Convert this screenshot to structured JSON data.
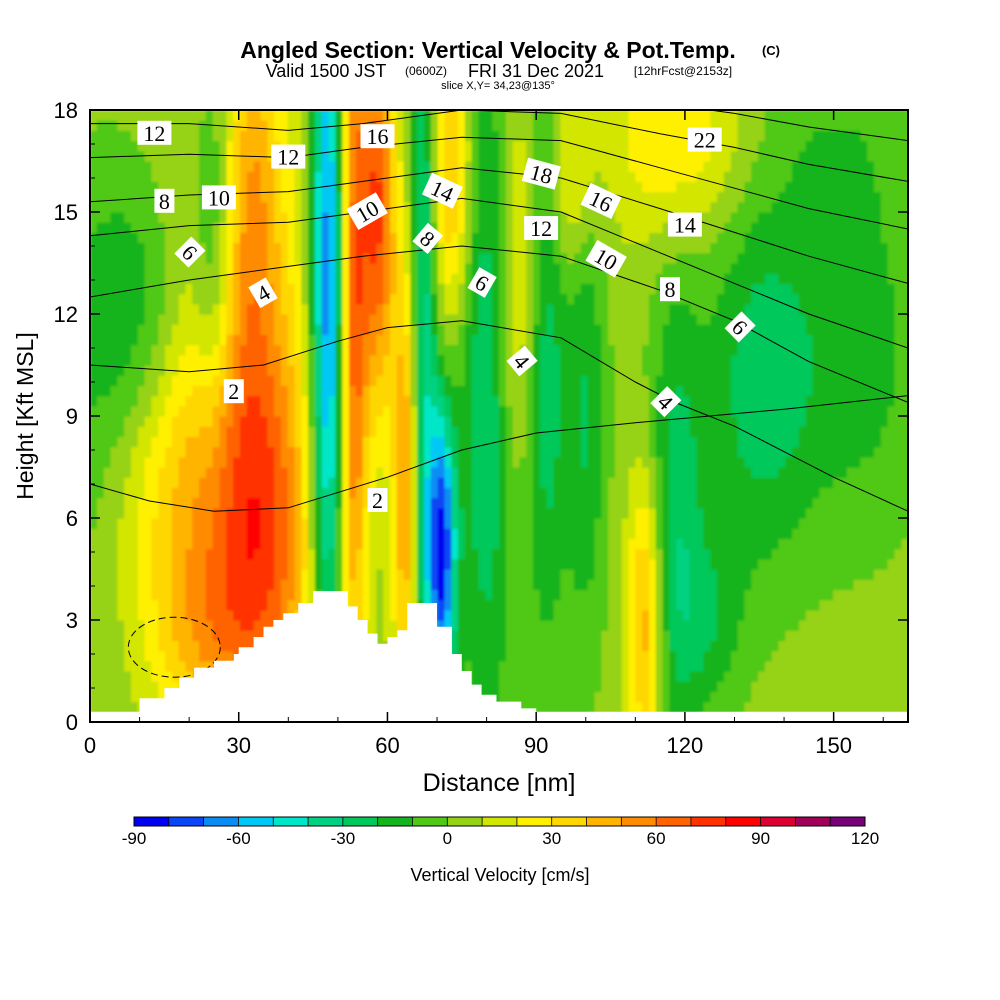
{
  "header": {
    "title": "Angled Section: Vertical Velocity & Pot.Temp.",
    "title_unit": "(C)",
    "valid_prefix": "Valid 1500 JST",
    "valid_utc": "(0600Z)",
    "valid_date": "FRI 31 Dec 2021",
    "forecast": "[12hrFcst@2153z]",
    "slice": "slice X,Y= 34,23@135°"
  },
  "chart_data": {
    "type": "heatmap",
    "xlabel": "Distance [nm]",
    "ylabel": "Height [Kft MSL]",
    "xlim": [
      0,
      165
    ],
    "ylim": [
      0,
      18
    ],
    "x_ticks": [
      0,
      30,
      60,
      90,
      120,
      150
    ],
    "y_ticks": [
      0,
      3,
      6,
      9,
      12,
      15,
      18
    ],
    "colorbar": {
      "label": "Vertical Velocity [cm/s]",
      "range": [
        -90,
        120
      ],
      "step": 10,
      "tick_labels": [
        "-90",
        "-60",
        "-30",
        "0",
        "30",
        "60",
        "90",
        "120"
      ],
      "colors": [
        "#0000f0",
        "#0a46f5",
        "#0a8cf5",
        "#00c8f5",
        "#00e6c8",
        "#00d282",
        "#00c85a",
        "#14b41e",
        "#50c814",
        "#96d214",
        "#d2e600",
        "#fff000",
        "#ffd700",
        "#ffb400",
        "#ff8c00",
        "#ff6400",
        "#ff3200",
        "#ff0000",
        "#dc0032",
        "#a0005a",
        "#780078"
      ]
    },
    "velocity_features_cm_s": [
      {
        "x": 0,
        "z": 9,
        "w": -15,
        "sx": 10,
        "sz": 5
      },
      {
        "x": 10,
        "z": 12,
        "w": -20,
        "sx": 8,
        "sz": 3
      },
      {
        "x": 15,
        "z": 7,
        "w": 22,
        "sx": 10,
        "sz": 3
      },
      {
        "x": 30,
        "z": 9,
        "w": 35,
        "sx": 11,
        "sz": 6
      },
      {
        "x": 35,
        "z": 5,
        "w": 42,
        "sx": 7,
        "sz": 4
      },
      {
        "x": 22,
        "z": 2.5,
        "w": 22,
        "sx": 8,
        "sz": 2
      },
      {
        "x": 25,
        "z": 14,
        "w": -30,
        "sx": 3,
        "sz": 4
      },
      {
        "x": 33,
        "z": 16,
        "w": 30,
        "sx": 4,
        "sz": 4
      },
      {
        "x": 48,
        "z": 12,
        "w": -80,
        "sx": 2.5,
        "sz": 8
      },
      {
        "x": 53,
        "z": 12,
        "w": 60,
        "sx": 2,
        "sz": 8
      },
      {
        "x": 58,
        "z": 15,
        "w": 65,
        "sx": 2.5,
        "sz": 4
      },
      {
        "x": 64,
        "z": 7,
        "w": 55,
        "sx": 2,
        "sz": 5
      },
      {
        "x": 67,
        "z": 11,
        "w": -50,
        "sx": 2,
        "sz": 9
      },
      {
        "x": 71,
        "z": 5,
        "w": -85,
        "sx": 2,
        "sz": 3
      },
      {
        "x": 73,
        "z": 16,
        "w": 40,
        "sx": 3,
        "sz": 3
      },
      {
        "x": 80,
        "z": 10,
        "w": -35,
        "sx": 4,
        "sz": 8
      },
      {
        "x": 86,
        "z": 13,
        "w": 25,
        "sx": 3,
        "sz": 4
      },
      {
        "x": 92,
        "z": 10,
        "w": -30,
        "sx": 3,
        "sz": 6
      },
      {
        "x": 100,
        "z": 9,
        "w": -25,
        "sx": 3,
        "sz": 5
      },
      {
        "x": 97,
        "z": 16,
        "w": 22,
        "sx": 3,
        "sz": 2
      },
      {
        "x": 112,
        "z": 3,
        "w": 45,
        "sx": 2.5,
        "sz": 3
      },
      {
        "x": 118,
        "z": 6,
        "w": -30,
        "sx": 4,
        "sz": 5
      },
      {
        "x": 125,
        "z": 3,
        "w": -20,
        "sx": 5,
        "sz": 2
      },
      {
        "x": 135,
        "z": 10,
        "w": -30,
        "sx": 8,
        "sz": 4
      },
      {
        "x": 155,
        "z": 11,
        "w": -20,
        "sx": 10,
        "sz": 4
      },
      {
        "x": 118,
        "z": 17,
        "w": 25,
        "sx": 10,
        "sz": 2
      },
      {
        "x": 150,
        "z": 17,
        "w": -10,
        "sx": 10,
        "sz": 2
      }
    ],
    "terrain_kft": {
      "x": [
        0,
        10,
        15,
        18,
        21,
        25,
        29,
        30,
        33,
        35,
        37,
        39,
        42,
        45,
        50,
        52,
        54,
        56,
        58,
        60,
        62,
        64,
        66,
        68,
        70,
        73,
        75,
        77,
        79,
        82,
        87,
        90,
        165
      ],
      "z": [
        0.3,
        0.7,
        1.0,
        1.3,
        1.6,
        1.8,
        2.0,
        2.2,
        2.5,
        2.8,
        3.0,
        3.2,
        3.5,
        3.85,
        3.85,
        3.4,
        3.0,
        2.6,
        2.3,
        2.5,
        2.7,
        3.5,
        3.5,
        3.5,
        2.8,
        2.0,
        1.5,
        1.1,
        0.8,
        0.6,
        0.4,
        0.3,
        0.3
      ]
    },
    "isentropes_degC": [
      {
        "value": 2,
        "x": [
          0,
          12,
          25,
          40,
          60,
          75,
          90,
          110,
          125,
          140,
          165
        ],
        "z": [
          7.0,
          6.5,
          6.2,
          6.3,
          7.2,
          8.0,
          8.5,
          8.8,
          9.0,
          9.2,
          9.6
        ]
      },
      {
        "value": 4,
        "x": [
          0,
          20,
          35,
          50,
          60,
          75,
          95,
          110,
          118,
          130,
          150,
          165
        ],
        "z": [
          10.5,
          10.3,
          10.5,
          11.2,
          11.6,
          11.8,
          11.3,
          10.0,
          9.4,
          8.7,
          7.2,
          6.2
        ]
      },
      {
        "value": 6,
        "x": [
          0,
          20,
          40,
          55,
          75,
          95,
          115,
          130,
          145,
          165
        ],
        "z": [
          12.5,
          13.0,
          13.4,
          13.7,
          14.0,
          13.7,
          12.7,
          11.8,
          10.6,
          9.4
        ]
      },
      {
        "value": 8,
        "x": [
          0,
          20,
          40,
          55,
          75,
          95,
          115,
          130,
          145,
          165
        ],
        "z": [
          14.3,
          14.6,
          14.7,
          15.0,
          15.4,
          15.0,
          13.8,
          12.9,
          12.0,
          11.0
        ]
      },
      {
        "value": 10,
        "x": [
          0,
          20,
          40,
          55,
          75,
          95,
          115,
          130,
          145,
          165
        ],
        "z": [
          15.3,
          15.5,
          15.6,
          15.9,
          16.3,
          16.0,
          15.1,
          14.4,
          13.7,
          12.9
        ]
      },
      {
        "value": 12,
        "x": [
          0,
          20,
          40,
          55,
          75,
          95,
          115,
          130,
          145,
          165
        ],
        "z": [
          16.6,
          16.7,
          16.6,
          16.9,
          17.2,
          17.1,
          16.3,
          15.7,
          15.1,
          14.5
        ]
      },
      {
        "value": 14,
        "x": [
          0,
          20,
          40,
          55,
          75,
          95,
          115,
          130,
          145,
          165
        ],
        "z": [
          17.6,
          17.6,
          17.4,
          17.6,
          18.0,
          17.9,
          17.3,
          16.9,
          16.4,
          15.9
        ]
      },
      {
        "value": 16,
        "x": [
          0,
          20,
          40,
          55,
          75,
          95,
          115,
          130,
          145,
          165
        ],
        "z": [
          18.4,
          18.3,
          18.1,
          18.2,
          18.6,
          18.6,
          18.2,
          17.9,
          17.5,
          17.1
        ]
      }
    ],
    "isentrope_labels": [
      {
        "text": "12",
        "x": 13,
        "z": 17.3,
        "angle": 0
      },
      {
        "text": "16",
        "x": 58,
        "z": 17.2,
        "angle": 0
      },
      {
        "text": "22",
        "x": 124,
        "z": 17.1,
        "angle": 0
      },
      {
        "text": "12",
        "x": 40,
        "z": 16.6,
        "angle": 0
      },
      {
        "text": "18",
        "x": 91,
        "z": 16.1,
        "angle": 15
      },
      {
        "text": "14",
        "x": 71,
        "z": 15.6,
        "angle": 25
      },
      {
        "text": "8",
        "x": 15,
        "z": 15.3,
        "angle": 0
      },
      {
        "text": "10",
        "x": 26,
        "z": 15.4,
        "angle": 0
      },
      {
        "text": "16",
        "x": 103,
        "z": 15.3,
        "angle": 25
      },
      {
        "text": "10",
        "x": 56,
        "z": 15.0,
        "angle": -30
      },
      {
        "text": "12",
        "x": 91,
        "z": 14.5,
        "angle": 0
      },
      {
        "text": "14",
        "x": 120,
        "z": 14.6,
        "angle": 0
      },
      {
        "text": "8",
        "x": 68,
        "z": 14.2,
        "angle": 40
      },
      {
        "text": "6",
        "x": 20,
        "z": 13.8,
        "angle": 45
      },
      {
        "text": "10",
        "x": 104,
        "z": 13.6,
        "angle": 30
      },
      {
        "text": "6",
        "x": 79,
        "z": 12.9,
        "angle": 30
      },
      {
        "text": "8",
        "x": 117,
        "z": 12.7,
        "angle": 0
      },
      {
        "text": "4",
        "x": 35,
        "z": 12.6,
        "angle": -30
      },
      {
        "text": "6",
        "x": 131,
        "z": 11.6,
        "angle": 45
      },
      {
        "text": "4",
        "x": 87,
        "z": 10.6,
        "angle": 50
      },
      {
        "text": "2",
        "x": 29,
        "z": 9.7,
        "angle": 0
      },
      {
        "text": "4",
        "x": 116,
        "z": 9.4,
        "angle": 45
      },
      {
        "text": "2",
        "x": 58,
        "z": 6.5,
        "angle": 0
      }
    ]
  }
}
